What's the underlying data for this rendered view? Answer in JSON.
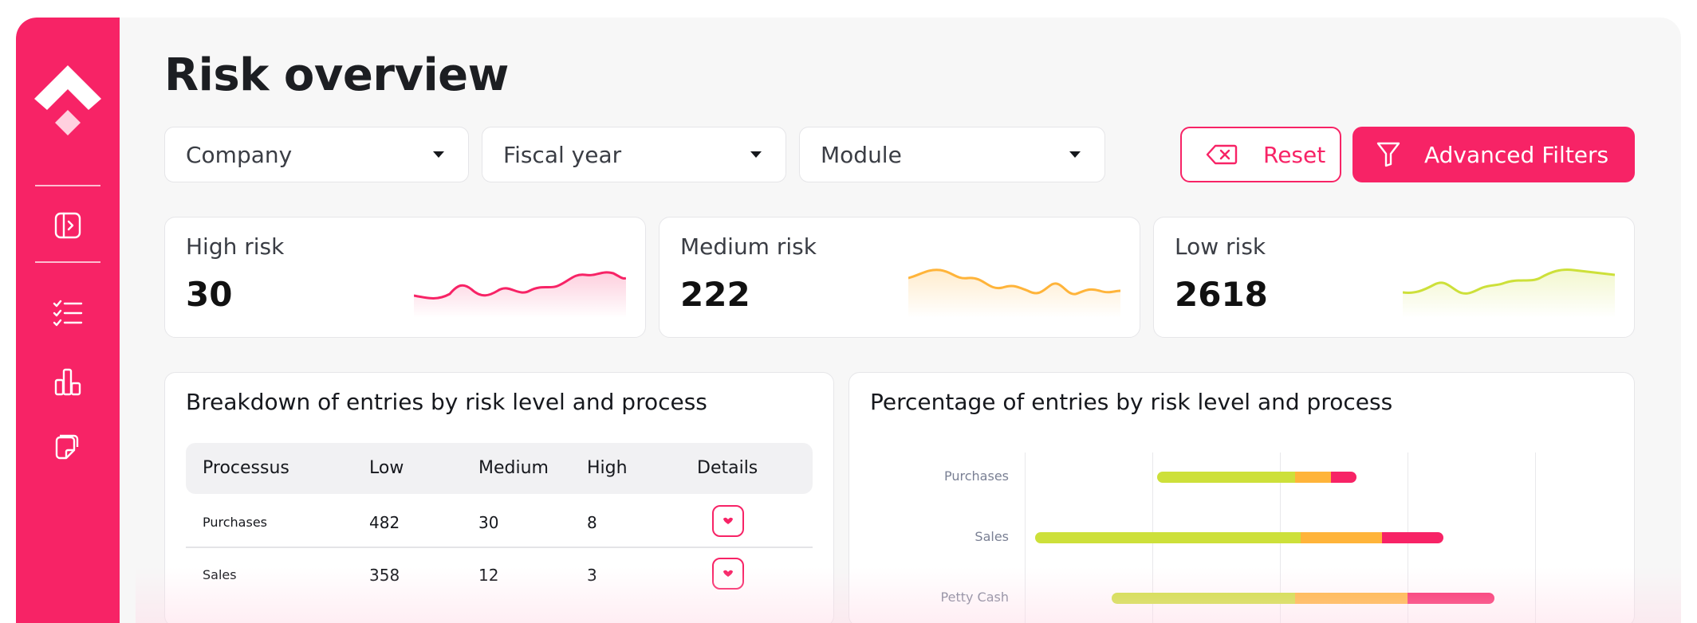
{
  "page": {
    "title": "Risk overview"
  },
  "filters": {
    "company": "Company",
    "fiscal_year": "Fiscal year",
    "module": "Module"
  },
  "actions": {
    "reset_label": "Reset",
    "advanced_label": "Advanced Filters"
  },
  "sidebar": {
    "icons": [
      "toggle-sidebar-icon",
      "checklist-icon",
      "bar-chart-icon",
      "documents-icon"
    ]
  },
  "kpis": [
    {
      "label": "High risk",
      "value": "30",
      "color": "#f72366"
    },
    {
      "label": "Medium risk",
      "value": "222",
      "color": "#ffb43a"
    },
    {
      "label": "Low risk",
      "value": "2618",
      "color": "#cde03a"
    }
  ],
  "breakdown": {
    "title": "Breakdown of entries by risk level and process",
    "columns": [
      "Processus",
      "Low",
      "Medium",
      "High",
      "Details"
    ],
    "rows": [
      {
        "process": "Purchases",
        "low": "482",
        "medium": "30",
        "high": "8"
      },
      {
        "process": "Sales",
        "low": "358",
        "medium": "12",
        "high": "3"
      }
    ]
  },
  "percentage": {
    "title": "Percentage of entries by risk level and process"
  },
  "chart_data": {
    "type": "bar",
    "stacked": true,
    "orientation": "horizontal",
    "categories": [
      "Purchases",
      "Sales",
      "Petty Cash"
    ],
    "colors": {
      "Low": "#cde03a",
      "Medium": "#ffb43a",
      "High": "#f72366"
    },
    "segments": [
      {
        "Low": 0.27,
        "Medium": 0.07,
        "High": 0.05
      },
      {
        "Low": 0.52,
        "Medium": 0.16,
        "High": 0.12
      },
      {
        "Low": 0.36,
        "Medium": 0.22,
        "High": 0.17
      }
    ],
    "offsets": [
      0.26,
      0.02,
      0.17
    ],
    "grid": true
  }
}
